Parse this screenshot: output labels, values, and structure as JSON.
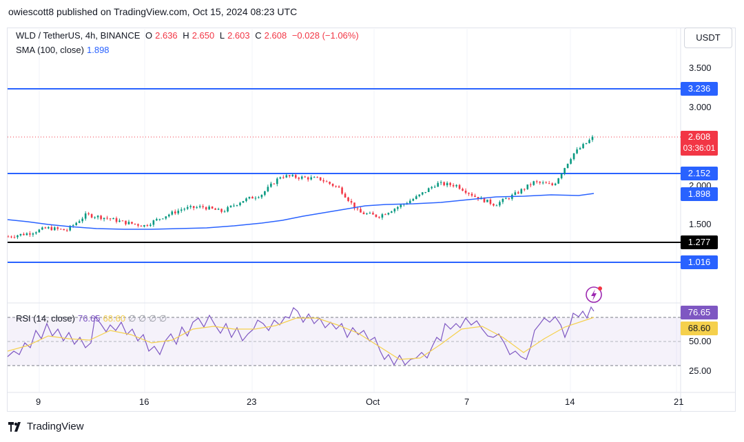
{
  "header": {
    "publisher": "owiescott8 published on TradingView.com, Oct 15, 2024 08:23 UTC"
  },
  "legend": {
    "symbol": "WLD / TetherUS, 4h, BINANCE",
    "open_label": "O",
    "open": "2.636",
    "high_label": "H",
    "high": "2.650",
    "low_label": "L",
    "low": "2.603",
    "close_label": "C",
    "close": "2.608",
    "change": "−0.028 (−1.06%)",
    "sma_label": "SMA (100, close)",
    "sma_value": "1.898",
    "rsi_label": "RSI (14, close)",
    "rsi_value": "76.65",
    "rsi_ma": "68.60",
    "rsi_extra": "∅ ∅ ∅ ∅"
  },
  "currency": "USDT",
  "footer": {
    "brand": "TradingView"
  },
  "colors": {
    "line": "#2962ff",
    "black": "#000000",
    "red": "#f23645",
    "green": "#089981",
    "sma": "#2962ff",
    "rsi": "#7e57c2",
    "rsi_ma": "#f5d04c"
  },
  "chart_data": [
    {
      "type": "candlestick",
      "price_axis_ticks": [
        "3.500",
        "3.000",
        "2.000",
        "1.500"
      ],
      "horizontal_levels": [
        {
          "value": "3.236",
          "color": "#2962ff"
        },
        {
          "value": "2.152",
          "color": "#2962ff"
        },
        {
          "value": "1.277",
          "color": "#000000"
        },
        {
          "value": "1.016",
          "color": "#2962ff"
        }
      ],
      "sma_tag": "1.898",
      "last_price": "2.608",
      "countdown": "03:36:01",
      "x_ticks": [
        "9",
        "16",
        "23",
        "Oct",
        "7",
        "14",
        "21"
      ],
      "approx_close_path": [
        1.34,
        1.38,
        1.45,
        1.42,
        1.62,
        1.58,
        1.52,
        1.48,
        1.6,
        1.7,
        1.72,
        1.66,
        1.8,
        1.88,
        2.12,
        2.1,
        2.08,
        1.96,
        1.65,
        1.6,
        1.72,
        1.85,
        2.02,
        2.0,
        1.85,
        1.75,
        1.88,
        2.04,
        2.0,
        2.4,
        2.608
      ]
    },
    {
      "type": "line",
      "title": "RSI (14, close)",
      "y_ticks": [
        "76.65",
        "68.60",
        "50.00",
        "25.00"
      ],
      "band": [
        30,
        70
      ]
    }
  ]
}
